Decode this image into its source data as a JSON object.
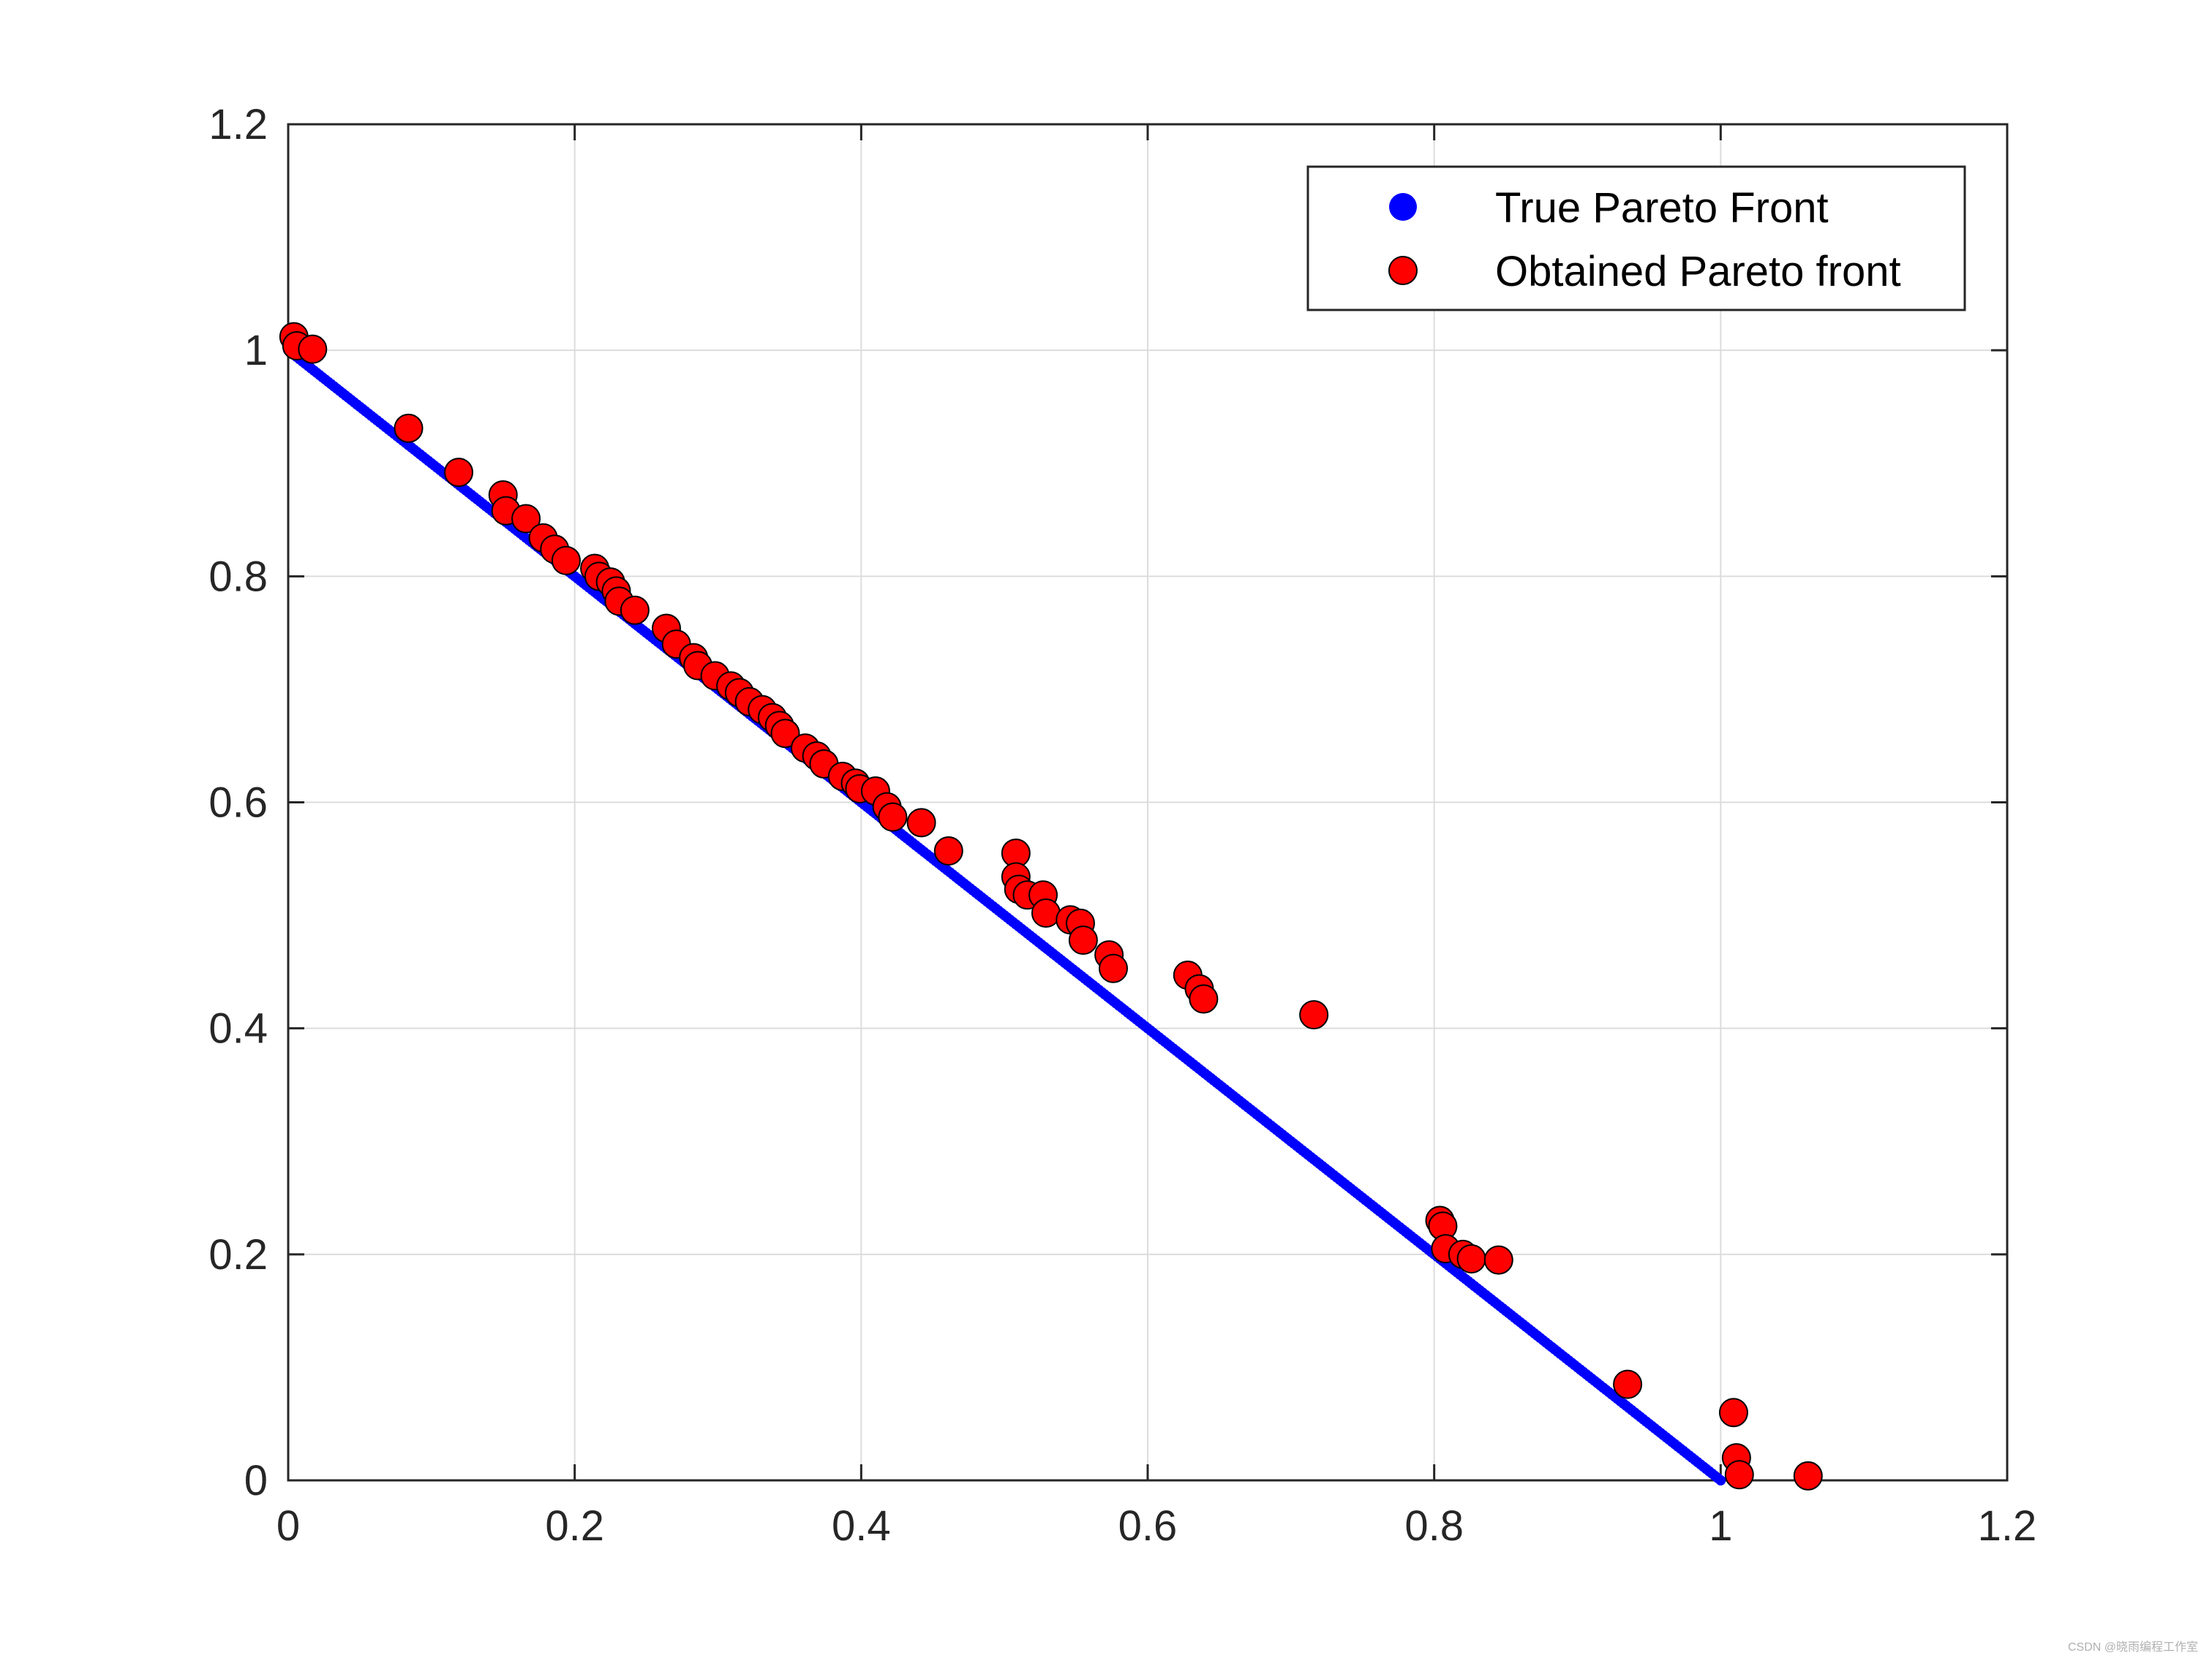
{
  "chart_data": {
    "type": "scatter",
    "title": "",
    "xlabel": "",
    "ylabel": "",
    "xlim": [
      0,
      1.2
    ],
    "ylim": [
      0,
      1.2
    ],
    "grid": true,
    "legend_position": "top-right",
    "x_ticks": [
      "0",
      "0.2",
      "0.4",
      "0.6",
      "0.8",
      "1",
      "1.2"
    ],
    "y_ticks": [
      "0",
      "0.2",
      "0.4",
      "0.6",
      "0.8",
      "1",
      "1.2"
    ],
    "series": [
      {
        "name": "True Pareto Front",
        "color": "#0000ff",
        "marker": "filled-circle",
        "x": [
          0,
          1
        ],
        "y": [
          1,
          0
        ]
      },
      {
        "name": "Obtained Pareto front",
        "color": "#ff0000",
        "edge_color": "#000000",
        "marker": "circle",
        "points": [
          [
            0.004,
            1.012
          ],
          [
            0.006,
            1.004
          ],
          [
            0.017,
            1.001
          ],
          [
            0.084,
            0.931
          ],
          [
            0.119,
            0.892
          ],
          [
            0.15,
            0.872
          ],
          [
            0.152,
            0.858
          ],
          [
            0.166,
            0.851
          ],
          [
            0.178,
            0.834
          ],
          [
            0.186,
            0.824
          ],
          [
            0.194,
            0.814
          ],
          [
            0.214,
            0.807
          ],
          [
            0.217,
            0.8
          ],
          [
            0.225,
            0.795
          ],
          [
            0.229,
            0.787
          ],
          [
            0.231,
            0.778
          ],
          [
            0.242,
            0.77
          ],
          [
            0.264,
            0.754
          ],
          [
            0.271,
            0.74
          ],
          [
            0.283,
            0.728
          ],
          [
            0.286,
            0.721
          ],
          [
            0.298,
            0.712
          ],
          [
            0.309,
            0.703
          ],
          [
            0.315,
            0.697
          ],
          [
            0.322,
            0.689
          ],
          [
            0.331,
            0.682
          ],
          [
            0.338,
            0.675
          ],
          [
            0.343,
            0.668
          ],
          [
            0.347,
            0.661
          ],
          [
            0.361,
            0.648
          ],
          [
            0.369,
            0.641
          ],
          [
            0.374,
            0.634
          ],
          [
            0.387,
            0.623
          ],
          [
            0.396,
            0.617
          ],
          [
            0.399,
            0.612
          ],
          [
            0.41,
            0.61
          ],
          [
            0.418,
            0.596
          ],
          [
            0.422,
            0.587
          ],
          [
            0.442,
            0.582
          ],
          [
            0.461,
            0.557
          ],
          [
            0.508,
            0.555
          ],
          [
            0.508,
            0.534
          ],
          [
            0.51,
            0.523
          ],
          [
            0.516,
            0.518
          ],
          [
            0.527,
            0.518
          ],
          [
            0.529,
            0.502
          ],
          [
            0.546,
            0.496
          ],
          [
            0.553,
            0.493
          ],
          [
            0.555,
            0.478
          ],
          [
            0.573,
            0.465
          ],
          [
            0.576,
            0.453
          ],
          [
            0.628,
            0.447
          ],
          [
            0.636,
            0.435
          ],
          [
            0.639,
            0.426
          ],
          [
            0.716,
            0.412
          ],
          [
            0.804,
            0.23
          ],
          [
            0.806,
            0.225
          ],
          [
            0.808,
            0.205
          ],
          [
            0.82,
            0.2
          ],
          [
            0.826,
            0.196
          ],
          [
            0.845,
            0.195
          ],
          [
            0.935,
            0.085
          ],
          [
            1.009,
            0.06
          ],
          [
            1.011,
            0.02
          ],
          [
            1.013,
            0.005
          ],
          [
            1.061,
            0.004
          ]
        ]
      }
    ]
  },
  "watermark": "CSDN @晓雨编程工作室"
}
